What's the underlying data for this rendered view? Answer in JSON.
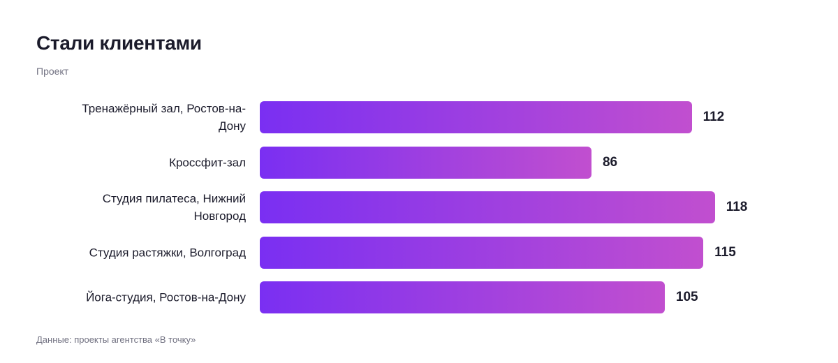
{
  "chart_data": {
    "type": "bar",
    "orientation": "horizontal",
    "title": "Стали клиентами",
    "y_label": "Проект",
    "categories": [
      "Тренажёрный зал, Ростов-на-Дону",
      "Кроссфит-зал",
      "Студия пилатеса, Нижний Новгород",
      "Студия растяжки, Волгоград",
      "Йога-студия, Ростов-на-Дону"
    ],
    "values": [
      112,
      86,
      118,
      115,
      105
    ],
    "colors": [
      "#7a2ff2",
      "#c14fcf"
    ],
    "xlim": [
      0,
      130
    ],
    "source": "Данные: проекты агентства «В точку»"
  }
}
